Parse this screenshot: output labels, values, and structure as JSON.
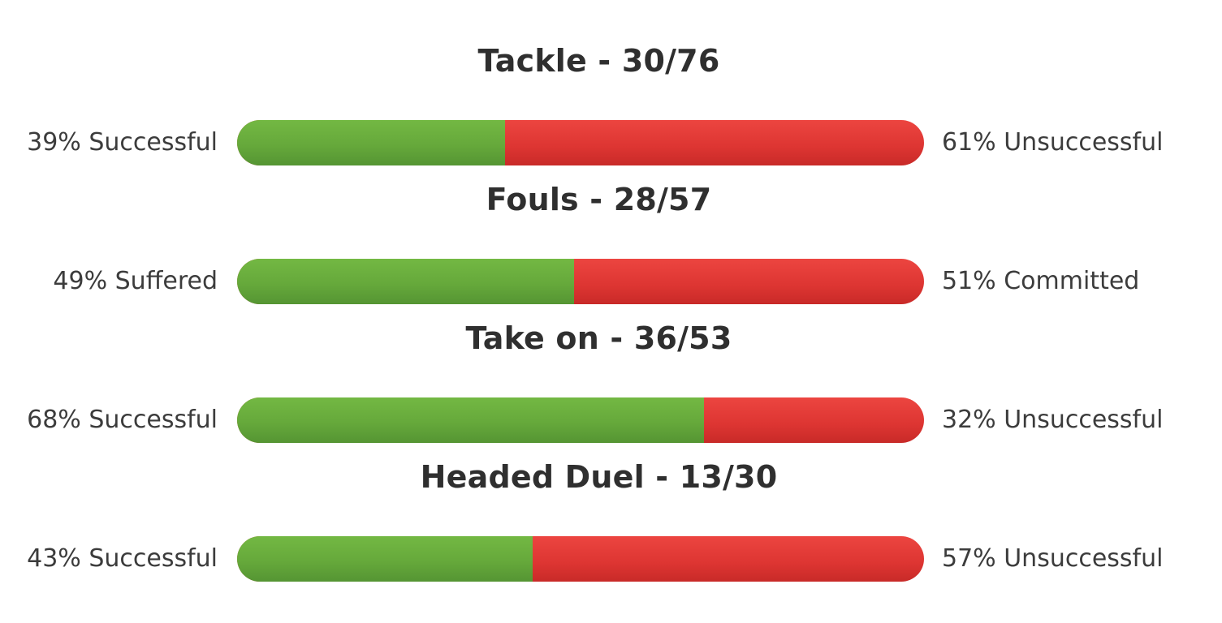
{
  "chart_data": {
    "type": "bar",
    "orientation": "horizontal",
    "stacked": true,
    "normalized_percent": true,
    "colors": {
      "positive": "#6aad3d",
      "negative": "#e13b36"
    },
    "rows": [
      {
        "title": "Tackle - 30/76",
        "positive_value": 39,
        "negative_value": 61,
        "left_label": "39% Successful",
        "right_label": "61% Unsuccessful"
      },
      {
        "title": "Fouls - 28/57",
        "positive_value": 49,
        "negative_value": 51,
        "left_label": "49% Suffered",
        "right_label": "51% Committed"
      },
      {
        "title": "Take on - 36/53",
        "positive_value": 68,
        "negative_value": 32,
        "left_label": "68% Successful",
        "right_label": "32% Unsuccessful"
      },
      {
        "title": "Headed Duel - 13/30",
        "positive_value": 43,
        "negative_value": 57,
        "left_label": "43% Successful",
        "right_label": "57% Unsuccessful"
      }
    ]
  }
}
